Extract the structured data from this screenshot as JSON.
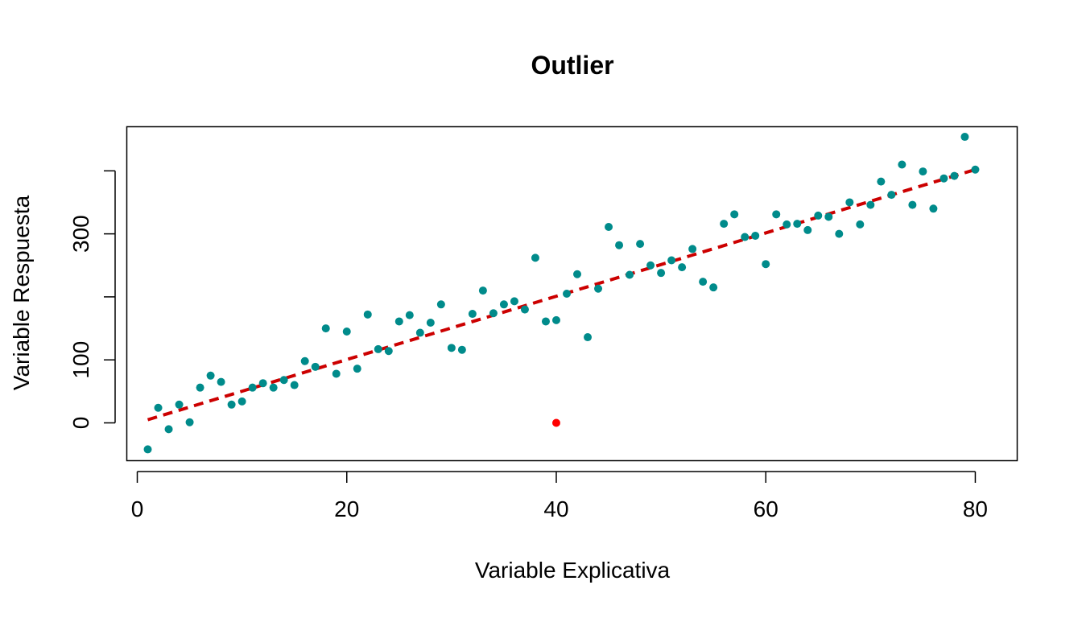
{
  "chart_data": {
    "type": "scatter",
    "title": "Outlier",
    "xlabel": "Variable Explicativa",
    "ylabel": "Variable Respuesta",
    "xlim": [
      -1,
      84
    ],
    "ylim": [
      -60,
      470
    ],
    "x_ticks": [
      0,
      20,
      40,
      60,
      80
    ],
    "x_tick_labels": [
      "0",
      "20",
      "40",
      "60",
      "80"
    ],
    "y_ticks": [
      0,
      100,
      200,
      300,
      400
    ],
    "y_tick_labels": [
      "0",
      "100",
      "",
      "300",
      ""
    ],
    "grid": false,
    "legend": "none",
    "colors": {
      "points": "#008b8b",
      "outlier": "#ff0000",
      "trend": "#cc0000"
    },
    "series": [
      {
        "kind": "points",
        "x": [
          1,
          2,
          3,
          4,
          5,
          6,
          7,
          8,
          9,
          10,
          11,
          12,
          13,
          14,
          15,
          16,
          17,
          18,
          19,
          20,
          21,
          22,
          23,
          24,
          25,
          26,
          27,
          28,
          29,
          30,
          31,
          32,
          33,
          34,
          35,
          36,
          37,
          38,
          39,
          40,
          41,
          42,
          43,
          44,
          45,
          46,
          47,
          48,
          49,
          50,
          51,
          52,
          53,
          54,
          55,
          56,
          57,
          58,
          59,
          60,
          61,
          62,
          63,
          64,
          65,
          66,
          67,
          68,
          69,
          70,
          71,
          72,
          73,
          74,
          75,
          76,
          77,
          78,
          79,
          80
        ],
        "y": [
          -42,
          24,
          -10,
          29,
          1,
          56,
          75,
          65,
          29,
          34,
          56,
          63,
          56,
          68,
          60,
          98,
          89,
          150,
          78,
          145,
          86,
          172,
          117,
          114,
          161,
          171,
          143,
          159,
          188,
          119,
          116,
          173,
          210,
          174,
          188,
          193,
          180,
          262,
          161,
          163,
          205,
          236,
          136,
          213,
          311,
          282,
          235,
          284,
          250,
          238,
          258,
          247,
          276,
          224,
          215,
          316,
          331,
          295,
          297,
          252,
          331,
          315,
          316,
          306,
          329,
          327,
          300,
          350,
          315,
          346,
          383,
          362,
          410,
          346,
          399,
          340,
          388,
          392,
          454,
          402
        ]
      },
      {
        "kind": "outlier",
        "x": [
          40
        ],
        "y": [
          0
        ]
      },
      {
        "kind": "fitted-line",
        "x": [
          1,
          80
        ],
        "y": [
          5,
          402
        ]
      }
    ]
  }
}
